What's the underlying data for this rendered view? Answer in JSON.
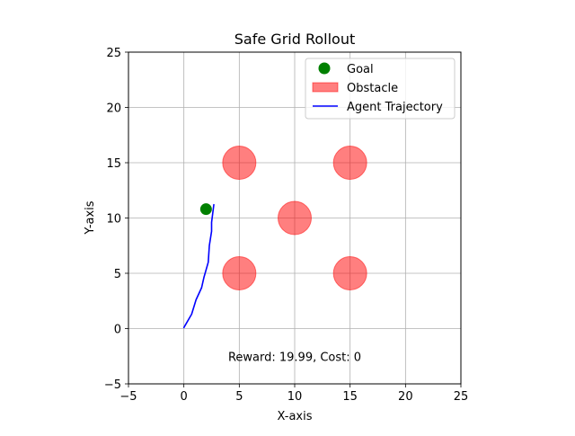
{
  "chart_data": {
    "type": "scatter",
    "title": "Safe Grid Rollout",
    "xlabel": "X-axis",
    "ylabel": "Y-axis",
    "xlim": [
      -5,
      25
    ],
    "ylim": [
      -5,
      25
    ],
    "xticks": [
      -5,
      0,
      5,
      10,
      15,
      20,
      25
    ],
    "yticks": [
      -5,
      0,
      5,
      10,
      15,
      20,
      25
    ],
    "grid": true,
    "legend_position": "upper right",
    "legend": [
      {
        "label": "Goal",
        "marker": "circle",
        "color": "#008000"
      },
      {
        "label": "Obstacle",
        "marker": "patch",
        "color": "#ff0000",
        "alpha": 0.5
      },
      {
        "label": "Agent Trajectory",
        "marker": "line",
        "color": "#0000ff"
      }
    ],
    "goal": {
      "x": 2.0,
      "y": 10.8,
      "color": "#008000"
    },
    "obstacles": {
      "color": "#ff0000",
      "alpha": 0.5,
      "radius": 1.5,
      "centers": [
        {
          "x": 5,
          "y": 15
        },
        {
          "x": 15,
          "y": 15
        },
        {
          "x": 10,
          "y": 10
        },
        {
          "x": 5,
          "y": 5
        },
        {
          "x": 15,
          "y": 5
        }
      ]
    },
    "trajectory": {
      "color": "#0000ff",
      "points": [
        {
          "x": 0.0,
          "y": 0.1
        },
        {
          "x": 0.7,
          "y": 1.3
        },
        {
          "x": 1.1,
          "y": 2.6
        },
        {
          "x": 1.6,
          "y": 3.7
        },
        {
          "x": 1.8,
          "y": 4.6
        },
        {
          "x": 2.2,
          "y": 6.0
        },
        {
          "x": 2.3,
          "y": 7.5
        },
        {
          "x": 2.5,
          "y": 8.8
        },
        {
          "x": 2.5,
          "y": 9.6
        },
        {
          "x": 2.7,
          "y": 11.2
        }
      ]
    },
    "annotation": {
      "text": "Reward: 19.99, Cost: 0",
      "x": 10,
      "y": -2.5
    }
  }
}
